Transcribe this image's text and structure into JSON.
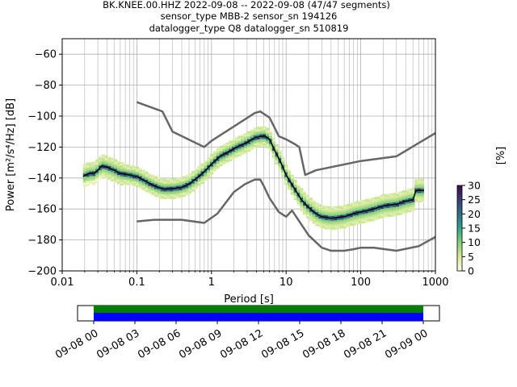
{
  "titles": [
    "BK.KNEE.00.HHZ   2022-09-08 -- 2022-09-08  (47/47 segments)",
    "sensor_type MBB-2 sensor_sn 194126",
    "datalogger_type Q8 datalogger_sn 510819"
  ],
  "chart_data": {
    "type": "heatmap",
    "xlabel": "Period [s]",
    "ylabel": "Power [m²/s⁴/Hz] [dB]",
    "x_scale": "log",
    "xlim": [
      0.01,
      1000
    ],
    "ylim": [
      -200,
      -50
    ],
    "x_ticks": [
      {
        "value": 0.01,
        "label": "0.01"
      },
      {
        "value": 0.1,
        "label": "0.1"
      },
      {
        "value": 1,
        "label": "1"
      },
      {
        "value": 10,
        "label": "10"
      },
      {
        "value": 100,
        "label": "100"
      },
      {
        "value": 1000,
        "label": "1000"
      }
    ],
    "y_ticks": [
      {
        "value": -60,
        "label": "−60"
      },
      {
        "value": -80,
        "label": "−80"
      },
      {
        "value": -100,
        "label": "−100"
      },
      {
        "value": -120,
        "label": "−120"
      },
      {
        "value": -140,
        "label": "−140"
      },
      {
        "value": -160,
        "label": "−160"
      },
      {
        "value": -180,
        "label": "−180"
      },
      {
        "value": -200,
        "label": "−200"
      }
    ],
    "grid": true,
    "colorbar": {
      "label": "[%]",
      "range": [
        0,
        30
      ],
      "ticks": [
        {
          "value": 0,
          "label": "0"
        },
        {
          "value": 5,
          "label": "5"
        },
        {
          "value": 10,
          "label": "10"
        },
        {
          "value": 15,
          "label": "15"
        },
        {
          "value": 20,
          "label": "20"
        },
        {
          "value": 25,
          "label": "25"
        },
        {
          "value": 30,
          "label": "30"
        }
      ]
    },
    "mean_psd": {
      "period": [
        0.019,
        0.023,
        0.027,
        0.03,
        0.034,
        0.04,
        0.05,
        0.06,
        0.08,
        0.1,
        0.13,
        0.17,
        0.22,
        0.3,
        0.4,
        0.5,
        0.6,
        0.8,
        1,
        1.3,
        1.7,
        2.2,
        3,
        3.8,
        4.5,
        5.2,
        6,
        7,
        8.5,
        10,
        13,
        16,
        20,
        25,
        30,
        40,
        60,
        80,
        100,
        150,
        200,
        300,
        400,
        500,
        550,
        700
      ],
      "power": [
        -139,
        -137,
        -137,
        -135,
        -132,
        -133,
        -135,
        -137,
        -138,
        -139,
        -142,
        -145,
        -147,
        -147,
        -146,
        -144,
        -141,
        -136,
        -131,
        -126,
        -123,
        -120,
        -117,
        -114,
        -113,
        -113,
        -115,
        -122,
        -130,
        -138,
        -147,
        -154,
        -159,
        -163,
        -165,
        -166,
        -165,
        -163,
        -162,
        -160,
        -158,
        -157,
        -155,
        -154,
        -148,
        -148
      ]
    },
    "noise_models": [
      {
        "period": [
          0.1,
          0.17,
          0.22,
          0.3,
          0.8,
          1,
          3.8,
          4.5,
          5.2,
          6,
          8,
          10,
          13,
          15,
          18,
          25,
          100,
          300,
          1000
        ],
        "power": [
          -91,
          -95,
          -97,
          -110,
          -120,
          -116,
          -98,
          -97,
          -99,
          -101,
          -113,
          -115,
          -118,
          -120,
          -138,
          -135,
          -129,
          -126,
          -111
        ]
      },
      {
        "period": [
          0.1,
          0.17,
          0.4,
          0.8,
          1.2,
          2,
          2.8,
          3.8,
          4.5,
          5,
          6,
          8,
          10,
          12,
          15,
          20,
          30,
          40,
          60,
          80,
          100,
          150,
          300,
          600,
          1000
        ],
        "power": [
          -168,
          -167,
          -167,
          -169,
          -163,
          -149,
          -144,
          -141,
          -141,
          -145,
          -153,
          -162,
          -165,
          -161,
          -168,
          -177,
          -185,
          -187,
          -187,
          -186,
          -185,
          -185,
          -187,
          -184,
          -178
        ]
      }
    ],
    "timeline": {
      "tick_labels": [
        "09-08 00",
        "09-08 03",
        "09-08 06",
        "09-08 09",
        "09-08 12",
        "09-08 15",
        "09-08 18",
        "09-08 21",
        "09-09 00"
      ],
      "coverage": [
        0,
        1
      ],
      "colors": {
        "top": "#008000",
        "bottom": "#0000ff"
      }
    }
  }
}
